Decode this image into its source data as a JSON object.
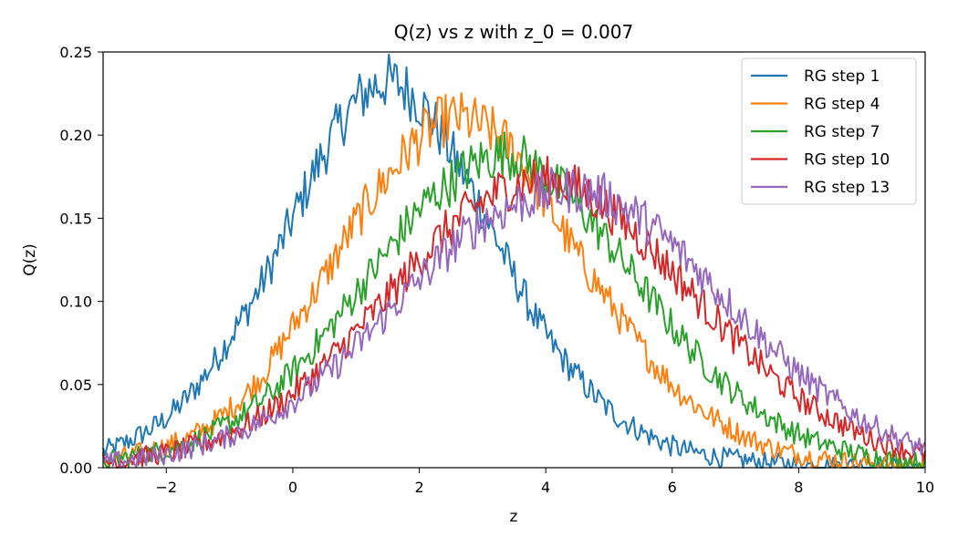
{
  "chart_data": {
    "type": "line",
    "title": "Q(z) vs z with z_0 = 0.007",
    "xlabel": "z",
    "ylabel": "Q(z)",
    "xlim": [
      -3,
      10
    ],
    "ylim": [
      0,
      0.25
    ],
    "xticks": [
      -2,
      0,
      2,
      4,
      6,
      8,
      10
    ],
    "xtick_labels": [
      "−2",
      "0",
      "2",
      "4",
      "6",
      "8",
      "10"
    ],
    "yticks": [
      0,
      0.05,
      0.1,
      0.15,
      0.2,
      0.25
    ],
    "ytick_labels": [
      "0.00",
      "0.05",
      "0.10",
      "0.15",
      "0.20",
      "0.25"
    ],
    "grid": false,
    "legend_position": "top-right",
    "series": [
      {
        "name": "RG step 1",
        "color": "#1f77b4",
        "x": [
          -3,
          -2.5,
          -2,
          -1.5,
          -1,
          -0.5,
          0,
          0.5,
          1,
          1.5,
          2,
          2.5,
          3,
          3.5,
          4,
          4.5,
          5,
          5.5,
          6,
          6.5,
          7,
          7.5,
          8,
          8.5,
          9,
          9.5,
          10
        ],
        "y": [
          0.01,
          0.018,
          0.03,
          0.05,
          0.078,
          0.11,
          0.15,
          0.19,
          0.22,
          0.232,
          0.22,
          0.19,
          0.155,
          0.115,
          0.08,
          0.055,
          0.035,
          0.022,
          0.013,
          0.008,
          0.005,
          0.003,
          0.002,
          0.001,
          0.001,
          0.0005,
          0.0003
        ]
      },
      {
        "name": "RG step 4",
        "color": "#ff7f0e",
        "x": [
          -3,
          -2.5,
          -2,
          -1.5,
          -1,
          -0.5,
          0,
          0.5,
          1,
          1.5,
          2,
          2.5,
          3,
          3.5,
          4,
          4.5,
          5,
          5.5,
          6,
          6.5,
          7,
          7.5,
          8,
          8.5,
          9,
          9.5,
          10
        ],
        "y": [
          0.004,
          0.008,
          0.013,
          0.021,
          0.035,
          0.055,
          0.085,
          0.115,
          0.148,
          0.175,
          0.198,
          0.21,
          0.205,
          0.19,
          0.16,
          0.128,
          0.1,
          0.073,
          0.05,
          0.034,
          0.022,
          0.013,
          0.008,
          0.005,
          0.003,
          0.002,
          0.001
        ]
      },
      {
        "name": "RG step 7",
        "color": "#2ca02c",
        "x": [
          -3,
          -2.5,
          -2,
          -1.5,
          -1,
          -0.5,
          0,
          0.5,
          1,
          1.5,
          2,
          2.5,
          3,
          3.5,
          4,
          4.5,
          5,
          5.5,
          6,
          6.5,
          7,
          7.5,
          8,
          8.5,
          9,
          9.5,
          10
        ],
        "y": [
          0.004,
          0.007,
          0.011,
          0.017,
          0.027,
          0.04,
          0.058,
          0.08,
          0.105,
          0.13,
          0.155,
          0.172,
          0.185,
          0.188,
          0.175,
          0.158,
          0.135,
          0.11,
          0.085,
          0.063,
          0.045,
          0.031,
          0.02,
          0.013,
          0.008,
          0.005,
          0.003
        ]
      },
      {
        "name": "RG step 10",
        "color": "#d62728",
        "x": [
          -3,
          -2.5,
          -2,
          -1.5,
          -1,
          -0.5,
          0,
          0.5,
          1,
          1.5,
          2,
          2.5,
          3,
          3.5,
          4,
          4.5,
          5,
          5.5,
          6,
          6.5,
          7,
          7.5,
          8,
          8.5,
          9,
          9.5,
          10
        ],
        "y": [
          0.003,
          0.006,
          0.009,
          0.014,
          0.021,
          0.031,
          0.045,
          0.062,
          0.082,
          0.103,
          0.125,
          0.145,
          0.16,
          0.17,
          0.173,
          0.168,
          0.155,
          0.138,
          0.118,
          0.097,
          0.077,
          0.058,
          0.042,
          0.03,
          0.02,
          0.013,
          0.008
        ]
      },
      {
        "name": "RG step 13",
        "color": "#9467bd",
        "x": [
          -3,
          -2.5,
          -2,
          -1.5,
          -1,
          -0.5,
          0,
          0.5,
          1,
          1.5,
          2,
          2.5,
          3,
          3.5,
          4,
          4.5,
          5,
          5.5,
          6,
          6.5,
          7,
          7.5,
          8,
          8.5,
          9,
          9.5,
          10
        ],
        "y": [
          0.003,
          0.005,
          0.008,
          0.013,
          0.019,
          0.028,
          0.04,
          0.055,
          0.073,
          0.093,
          0.113,
          0.132,
          0.148,
          0.158,
          0.165,
          0.167,
          0.162,
          0.15,
          0.134,
          0.115,
          0.095,
          0.075,
          0.057,
          0.042,
          0.029,
          0.019,
          0.012
        ]
      }
    ]
  }
}
